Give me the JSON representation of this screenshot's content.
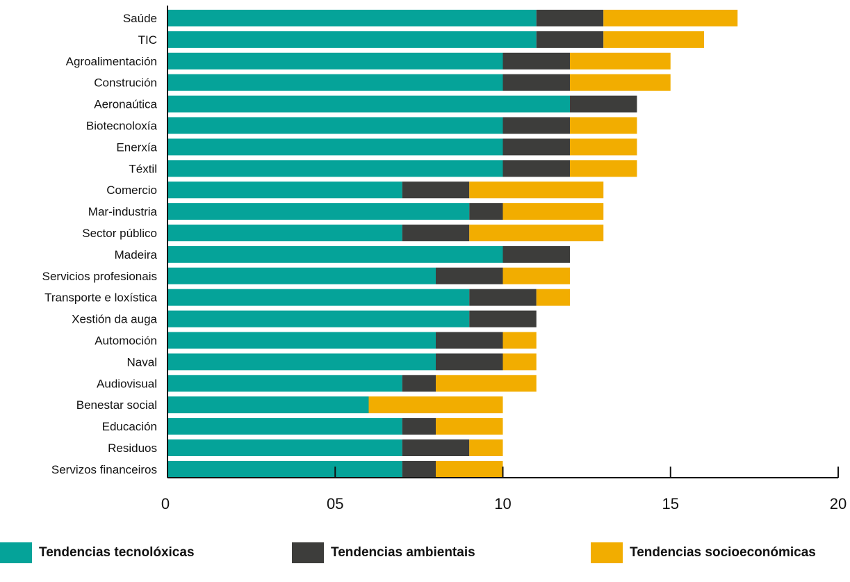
{
  "chart_data": {
    "type": "bar",
    "orientation": "horizontal",
    "stacked": true,
    "categories": [
      "Saúde",
      "TIC",
      "Agroalimentación",
      "Construción",
      "Aeronaútica",
      "Biotecnoloxía",
      "Enerxía",
      "Téxtil",
      "Comercio",
      "Mar-industria",
      "Sector público",
      "Madeira",
      "Servicios profesionais",
      "Transporte e loxística",
      "Xestión da auga",
      "Automoción",
      "Naval",
      "Audiovisual",
      "Benestar social",
      "Educación",
      "Residuos",
      "Servizos financeiros"
    ],
    "series": [
      {
        "name": "Tendencias tecnolóxicas",
        "color": "#05a399",
        "values": [
          11,
          11,
          10,
          10,
          12,
          10,
          10,
          10,
          7,
          9,
          7,
          10,
          8,
          9,
          9,
          8,
          8,
          7,
          6,
          7,
          7,
          7
        ]
      },
      {
        "name": "Tendencias ambientais",
        "color": "#3d3d3b",
        "values": [
          2,
          2,
          2,
          2,
          2,
          2,
          2,
          2,
          2,
          1,
          2,
          2,
          2,
          2,
          2,
          2,
          2,
          1,
          0,
          1,
          2,
          1
        ]
      },
      {
        "name": "Tendencias socioeconómicas",
        "color": "#f2ad00",
        "values": [
          4,
          3,
          3,
          3,
          0,
          2,
          2,
          2,
          4,
          3,
          4,
          0,
          2,
          1,
          0,
          1,
          1,
          3,
          4,
          2,
          1,
          2
        ]
      }
    ],
    "xlim": [
      0,
      20
    ],
    "xticks": [
      0,
      5,
      10,
      15,
      20
    ],
    "xtick_labels": [
      "0",
      "05",
      "10",
      "15",
      "20"
    ],
    "grid": false,
    "legend_position": "bottom"
  }
}
